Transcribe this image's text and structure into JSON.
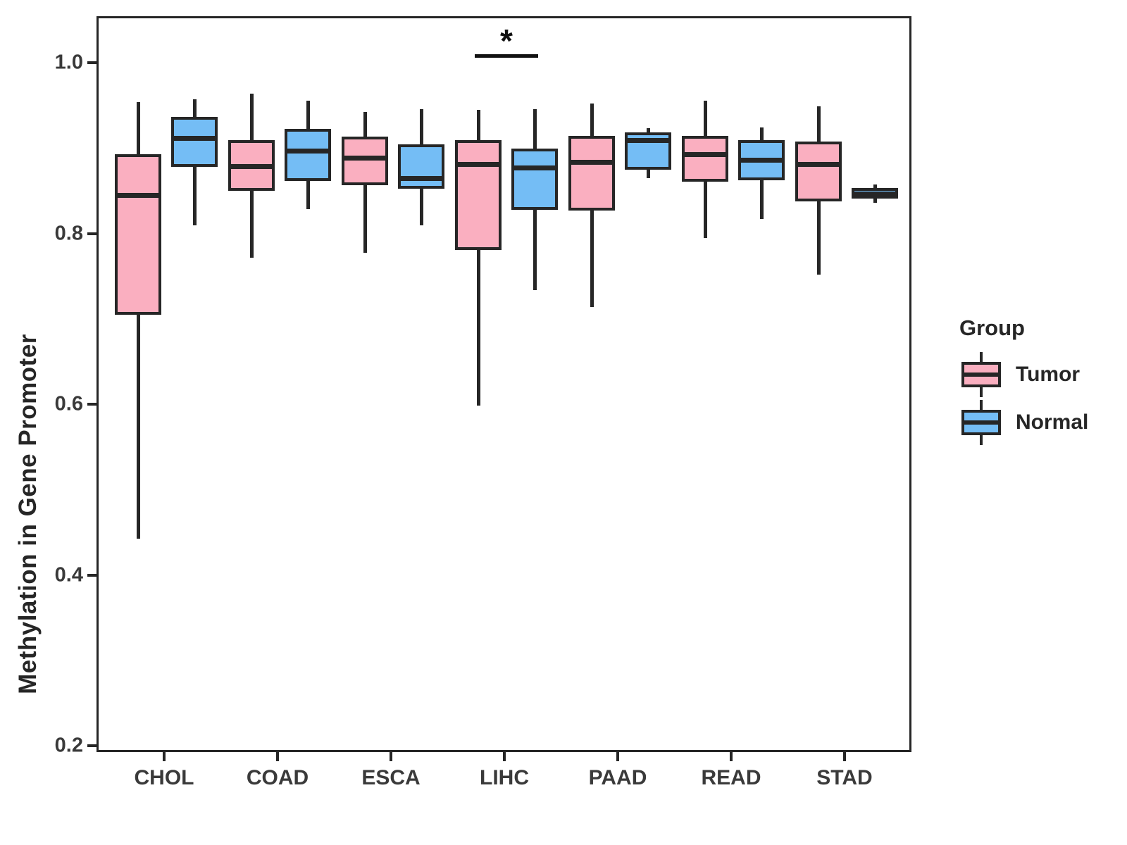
{
  "legend": {
    "title": "Group",
    "items": [
      {
        "label": "Tumor",
        "color": "#FAAFC0"
      },
      {
        "label": "Normal",
        "color": "#74BDF5"
      }
    ]
  },
  "chart_data": {
    "type": "boxplot",
    "title": "",
    "xlabel": "",
    "ylabel": "Methylation in Gene Promoter",
    "categories": [
      "CHOL",
      "COAD",
      "ESCA",
      "LIHC",
      "PAAD",
      "READ",
      "STAD"
    ],
    "ylim": [
      0.2,
      1.05
    ],
    "yticks": [
      1.0,
      0.8,
      0.6,
      0.4,
      0.2
    ],
    "grid": false,
    "legend_position": "right",
    "box_outline_color": "#262626",
    "series": [
      {
        "name": "Tumor",
        "color": "#FAAFC0",
        "boxes": [
          {
            "category": "CHOL",
            "whisker_low": 0.445,
            "q1": 0.707,
            "median": 0.847,
            "q3": 0.895,
            "whisker_high": 0.956
          },
          {
            "category": "COAD",
            "whisker_low": 0.774,
            "q1": 0.852,
            "median": 0.881,
            "q3": 0.912,
            "whisker_high": 0.966
          },
          {
            "category": "ESCA",
            "whisker_low": 0.78,
            "q1": 0.859,
            "median": 0.891,
            "q3": 0.916,
            "whisker_high": 0.945
          },
          {
            "category": "LIHC",
            "whisker_low": 0.601,
            "q1": 0.783,
            "median": 0.883,
            "q3": 0.912,
            "whisker_high": 0.947
          },
          {
            "category": "PAAD",
            "whisker_low": 0.716,
            "q1": 0.829,
            "median": 0.886,
            "q3": 0.917,
            "whisker_high": 0.955
          },
          {
            "category": "READ",
            "whisker_low": 0.797,
            "q1": 0.863,
            "median": 0.895,
            "q3": 0.917,
            "whisker_high": 0.958
          },
          {
            "category": "STAD",
            "whisker_low": 0.754,
            "q1": 0.84,
            "median": 0.883,
            "q3": 0.91,
            "whisker_high": 0.951
          }
        ]
      },
      {
        "name": "Normal",
        "color": "#74BDF5",
        "boxes": [
          {
            "category": "CHOL",
            "whisker_low": 0.812,
            "q1": 0.88,
            "median": 0.914,
            "q3": 0.939,
            "whisker_high": 0.96
          },
          {
            "category": "COAD",
            "whisker_low": 0.831,
            "q1": 0.864,
            "median": 0.899,
            "q3": 0.925,
            "whisker_high": 0.958
          },
          {
            "category": "ESCA",
            "whisker_low": 0.812,
            "q1": 0.855,
            "median": 0.867,
            "q3": 0.907,
            "whisker_high": 0.948
          },
          {
            "category": "LIHC",
            "whisker_low": 0.736,
            "q1": 0.83,
            "median": 0.879,
            "q3": 0.902,
            "whisker_high": 0.948
          },
          {
            "category": "PAAD",
            "whisker_low": 0.867,
            "q1": 0.877,
            "median": 0.911,
            "q3": 0.921,
            "whisker_high": 0.926
          },
          {
            "category": "READ",
            "whisker_low": 0.819,
            "q1": 0.865,
            "median": 0.888,
            "q3": 0.912,
            "whisker_high": 0.927
          },
          {
            "category": "STAD",
            "whisker_low": 0.838,
            "q1": 0.843,
            "median": 0.849,
            "q3": 0.856,
            "whisker_high": 0.86
          }
        ]
      }
    ],
    "annotations": [
      {
        "category": "LIHC",
        "label": "*",
        "y": 1.012,
        "spans": [
          "Tumor",
          "Normal"
        ]
      }
    ]
  }
}
